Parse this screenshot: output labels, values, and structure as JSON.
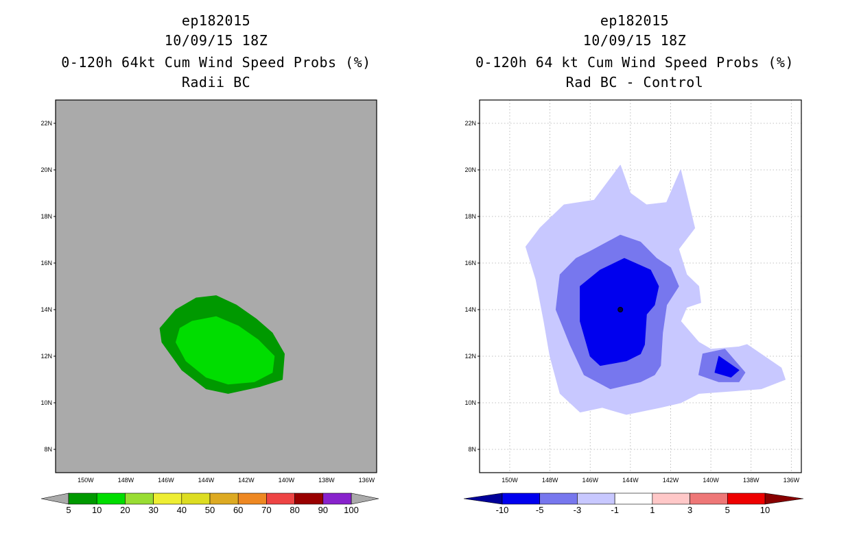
{
  "panels": [
    {
      "storm_id": "ep182015",
      "datetime": "10/09/15 18Z",
      "title": "0-120h 64kt Cum Wind Speed Probs (%)",
      "subtitle": "Radii BC"
    },
    {
      "storm_id": "ep182015",
      "datetime": "10/09/15 18Z",
      "title": "0-120h 64 kt Cum Wind Speed Probs (%)",
      "subtitle": "Rad BC - Control"
    }
  ],
  "chart_data": [
    {
      "type": "heatmap",
      "name": "Radii BC cumulative 64kt wind speed probability",
      "xlim": [
        -151.5,
        -135.5
      ],
      "ylim": [
        7,
        23
      ],
      "x_ticks": [
        -150,
        -148,
        -146,
        -144,
        -142,
        -140,
        -138,
        -136
      ],
      "x_tick_labels": [
        "150W",
        "148W",
        "146W",
        "144W",
        "142W",
        "140W",
        "138W",
        "136W"
      ],
      "y_ticks": [
        8,
        10,
        12,
        14,
        16,
        18,
        20,
        22
      ],
      "y_tick_labels": [
        "8N",
        "10N",
        "12N",
        "14N",
        "16N",
        "18N",
        "20N",
        "22N"
      ],
      "grid": false,
      "background": "#aaaaaa",
      "contours": [
        {
          "level": 5,
          "color": "#009900",
          "points": [
            [
              -144.5,
              14.5
            ],
            [
              -143.5,
              14.6
            ],
            [
              -142.5,
              14.2
            ],
            [
              -141.5,
              13.6
            ],
            [
              -140.7,
              13
            ],
            [
              -140.1,
              12.1
            ],
            [
              -140.2,
              11
            ],
            [
              -141.3,
              10.7
            ],
            [
              -142.9,
              10.4
            ],
            [
              -144,
              10.6
            ],
            [
              -145.2,
              11.4
            ],
            [
              -146.2,
              12.6
            ],
            [
              -146.3,
              13.2
            ],
            [
              -145.5,
              14
            ]
          ]
        },
        {
          "level": 10,
          "color": "#00dd00",
          "points": [
            [
              -144.7,
              13.5
            ],
            [
              -143.5,
              13.7
            ],
            [
              -142.4,
              13.3
            ],
            [
              -141.4,
              12.7
            ],
            [
              -140.6,
              12
            ],
            [
              -140.7,
              11.3
            ],
            [
              -141.6,
              10.9
            ],
            [
              -142.9,
              10.8
            ],
            [
              -144,
              11.1
            ],
            [
              -145,
              11.8
            ],
            [
              -145.5,
              12.6
            ],
            [
              -145.3,
              13.2
            ]
          ]
        }
      ],
      "colorbar": {
        "labels": [
          "5",
          "10",
          "20",
          "30",
          "40",
          "50",
          "60",
          "70",
          "80",
          "90",
          "100"
        ],
        "colors": [
          "#009900",
          "#00dd00",
          "#99dd33",
          "#eeee33",
          "#dddd22",
          "#ddaa22",
          "#ee8822",
          "#ee4444",
          "#990000",
          "#8822cc"
        ],
        "end_low": "#aaaaaa",
        "end_high": "#aaaaaa"
      }
    },
    {
      "type": "heatmap",
      "name": "Rad BC minus Control 64kt probability difference",
      "xlim": [
        -151.5,
        -135.5
      ],
      "ylim": [
        7,
        23
      ],
      "x_ticks": [
        -150,
        -148,
        -146,
        -144,
        -142,
        -140,
        -138,
        -136
      ],
      "x_tick_labels": [
        "150W",
        "148W",
        "146W",
        "144W",
        "142W",
        "140W",
        "138W",
        "136W"
      ],
      "y_ticks": [
        8,
        10,
        12,
        14,
        16,
        18,
        20,
        22
      ],
      "y_tick_labels": [
        "8N",
        "10N",
        "12N",
        "14N",
        "16N",
        "18N",
        "20N",
        "22N"
      ],
      "grid": true,
      "background": "#ffffff",
      "storm_position": {
        "lon": -144.5,
        "lat": 14
      },
      "contours": [
        {
          "level": -1,
          "color": "#c8c8ff",
          "points": [
            [
              -145.8,
              18.7
            ],
            [
              -144.5,
              20.2
            ],
            [
              -144,
              19
            ],
            [
              -143.2,
              18.5
            ],
            [
              -142.2,
              18.6
            ],
            [
              -141.5,
              20
            ],
            [
              -140.8,
              17.5
            ],
            [
              -141.6,
              16.6
            ],
            [
              -141.2,
              15.5
            ],
            [
              -140.6,
              15
            ],
            [
              -140.5,
              14.3
            ],
            [
              -141.2,
              14.1
            ],
            [
              -141.5,
              13.5
            ],
            [
              -140.6,
              12.6
            ],
            [
              -140,
              12.3
            ],
            [
              -138.6,
              12.4
            ],
            [
              -138.2,
              12.5
            ],
            [
              -136.5,
              11.5
            ],
            [
              -136.3,
              11
            ],
            [
              -137.5,
              10.6
            ],
            [
              -139,
              10.5
            ],
            [
              -140.6,
              10.4
            ],
            [
              -141.5,
              10
            ],
            [
              -142.5,
              9.8
            ],
            [
              -144.2,
              9.5
            ],
            [
              -145.4,
              9.8
            ],
            [
              -146.5,
              9.6
            ],
            [
              -147.5,
              10.4
            ],
            [
              -148,
              12
            ],
            [
              -148.3,
              13.5
            ],
            [
              -148.7,
              15.3
            ],
            [
              -149.2,
              16.7
            ],
            [
              -148.5,
              17.5
            ],
            [
              -147.3,
              18.5
            ]
          ]
        },
        {
          "level": -3,
          "color": "#7777ee",
          "points": [
            [
              -146,
              16.5
            ],
            [
              -144.5,
              17.2
            ],
            [
              -143.5,
              16.9
            ],
            [
              -142.7,
              16.2
            ],
            [
              -142,
              15.8
            ],
            [
              -141.6,
              15
            ],
            [
              -142.2,
              14.2
            ],
            [
              -142.4,
              13
            ],
            [
              -142.5,
              11.6
            ],
            [
              -142.8,
              11.2
            ],
            [
              -143.5,
              10.9
            ],
            [
              -145,
              10.6
            ],
            [
              -146.3,
              11.2
            ],
            [
              -147,
              12.5
            ],
            [
              -147.7,
              14
            ],
            [
              -147.5,
              15.5
            ],
            [
              -146.7,
              16.2
            ]
          ]
        },
        {
          "level": -3,
          "color": "#7777ee",
          "points": [
            [
              -140.4,
              12.1
            ],
            [
              -139.3,
              12.3
            ],
            [
              -138.3,
              11.3
            ],
            [
              -138.6,
              10.9
            ],
            [
              -139.6,
              10.9
            ],
            [
              -140.6,
              11.2
            ]
          ]
        },
        {
          "level": -5,
          "color": "#0000ee",
          "points": [
            [
              -145.5,
              15.7
            ],
            [
              -144.3,
              16.2
            ],
            [
              -143,
              15.7
            ],
            [
              -142.6,
              15
            ],
            [
              -142.8,
              14.2
            ],
            [
              -143.2,
              13.8
            ],
            [
              -143.3,
              12.5
            ],
            [
              -143.5,
              12.1
            ],
            [
              -144.2,
              11.8
            ],
            [
              -145.5,
              11.6
            ],
            [
              -146,
              12
            ],
            [
              -146.5,
              13.5
            ],
            [
              -146.5,
              15
            ]
          ]
        },
        {
          "level": -5,
          "color": "#0000ee",
          "points": [
            [
              -139.6,
              12
            ],
            [
              -138.6,
              11.4
            ],
            [
              -139,
              11.1
            ],
            [
              -139.8,
              11.3
            ]
          ]
        }
      ],
      "colorbar": {
        "labels": [
          "-10",
          "-5",
          "-3",
          "-1",
          "1",
          "3",
          "5",
          "10"
        ],
        "colors": [
          "#0000ee",
          "#7777ee",
          "#c8c8ff",
          "#ffffff",
          "#ffc8c8",
          "#ee7777",
          "#ee0000"
        ],
        "end_low": "#000099",
        "end_high": "#880000"
      }
    }
  ]
}
